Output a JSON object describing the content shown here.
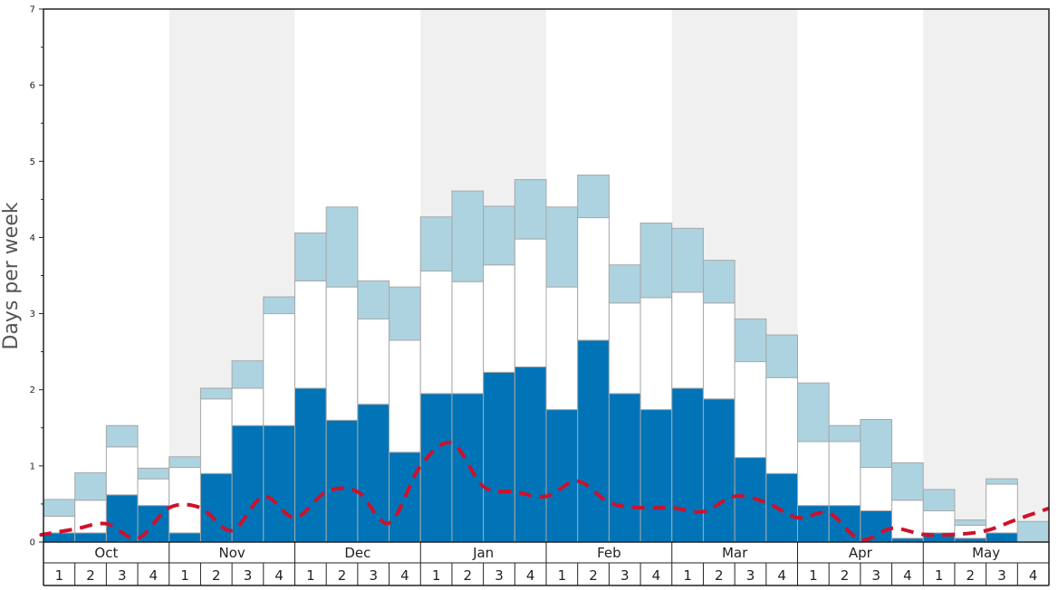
{
  "chart_data": {
    "type": "bar",
    "ylabel": "Days per week",
    "ylim": [
      0,
      7
    ],
    "y_ticks": [
      "0",
      "1",
      "2",
      "3",
      "4",
      "5",
      "6",
      "7"
    ],
    "months": [
      "Oct",
      "Nov",
      "Dec",
      "Jan",
      "Feb",
      "Mar",
      "Apr",
      "May"
    ],
    "weeks": [
      "1",
      "2",
      "3",
      "4"
    ],
    "stacked": true,
    "colors": {
      "dark_series": "#0074b7",
      "white_series": "#ffffff",
      "light_series": "#add3e0",
      "line": "#d0102a",
      "shade": "#f0f0f0"
    },
    "series": [
      {
        "values": [
          0.12,
          0.12,
          0.62,
          0.48,
          0.12,
          0.9,
          1.53,
          1.53,
          2.02,
          1.6,
          1.81,
          1.18,
          1.95,
          1.95,
          2.23,
          2.3,
          1.74,
          2.65,
          1.95,
          1.74,
          2.02,
          1.88,
          1.11,
          0.9,
          0.48,
          0.48,
          0.41,
          0.05,
          0.12,
          0.05,
          0.12,
          0.0
        ]
      },
      {
        "values": [
          0.22,
          0.43,
          0.63,
          0.35,
          0.86,
          0.98,
          0.49,
          1.47,
          1.41,
          1.75,
          1.12,
          1.47,
          1.61,
          1.47,
          1.41,
          1.68,
          1.61,
          1.61,
          1.19,
          1.47,
          1.26,
          1.26,
          1.26,
          1.26,
          0.84,
          0.84,
          0.57,
          0.5,
          0.29,
          0.17,
          0.64,
          0.0
        ]
      },
      {
        "values": [
          0.22,
          0.36,
          0.28,
          0.14,
          0.14,
          0.14,
          0.36,
          0.22,
          0.63,
          1.05,
          0.5,
          0.7,
          0.71,
          1.19,
          0.77,
          0.78,
          1.05,
          0.56,
          0.5,
          0.98,
          0.84,
          0.56,
          0.56,
          0.56,
          0.77,
          0.21,
          0.63,
          0.49,
          0.28,
          0.07,
          0.07,
          0.27
        ]
      },
      {
        "type": "line",
        "values": [
          0.1,
          0.17,
          0.24,
          0.05,
          0.45,
          0.45,
          0.15,
          0.6,
          0.32,
          0.66,
          0.66,
          0.25,
          1.0,
          1.3,
          0.73,
          0.66,
          0.6,
          0.8,
          0.52,
          0.45,
          0.45,
          0.4,
          0.6,
          0.52,
          0.32,
          0.38,
          0.03,
          0.18,
          0.1,
          0.1,
          0.15,
          0.3
        ]
      }
    ]
  }
}
